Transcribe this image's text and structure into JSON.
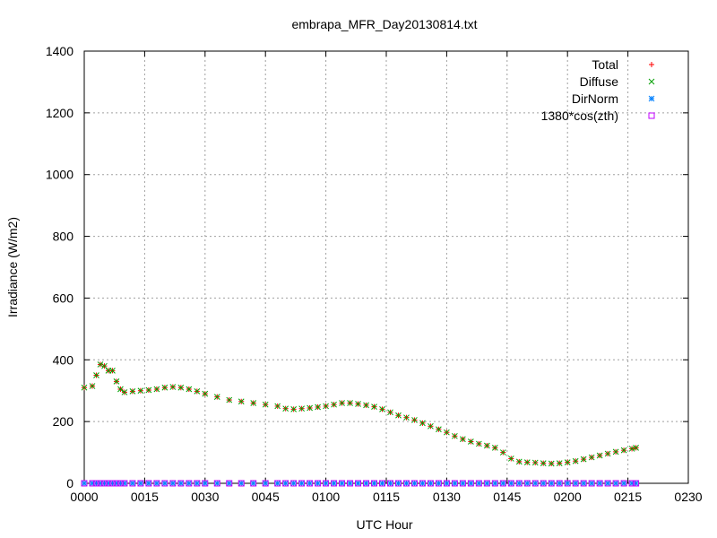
{
  "chart_data": {
    "type": "scatter",
    "title": "embrapa_MFR_Day20130814.txt",
    "xlabel": "UTC Hour",
    "ylabel": "Irradiance (W/m2)",
    "x_unit": "minutes after 0000 UTC",
    "xlim": [
      0,
      150
    ],
    "ylim": [
      0,
      1400
    ],
    "xticks": [
      {
        "value": 0,
        "label": "0000"
      },
      {
        "value": 15,
        "label": "0015"
      },
      {
        "value": 30,
        "label": "0030"
      },
      {
        "value": 45,
        "label": "0045"
      },
      {
        "value": 60,
        "label": "0100"
      },
      {
        "value": 75,
        "label": "0115"
      },
      {
        "value": 90,
        "label": "0130"
      },
      {
        "value": 105,
        "label": "0145"
      },
      {
        "value": 120,
        "label": "0200"
      },
      {
        "value": 135,
        "label": "0215"
      },
      {
        "value": 150,
        "label": "0230"
      }
    ],
    "yticks": [
      0,
      200,
      400,
      600,
      800,
      1000,
      1200,
      1400
    ],
    "grid": true,
    "legend_position": "top-right",
    "x": [
      0,
      2,
      3,
      4,
      5,
      6,
      7,
      8,
      9,
      10,
      12,
      14,
      16,
      18,
      20,
      22,
      24,
      26,
      28,
      30,
      33,
      36,
      39,
      42,
      45,
      48,
      50,
      52,
      54,
      56,
      58,
      60,
      62,
      64,
      66,
      68,
      70,
      72,
      74,
      76,
      78,
      80,
      82,
      84,
      86,
      88,
      90,
      92,
      94,
      96,
      98,
      100,
      102,
      104,
      106,
      108,
      110,
      112,
      114,
      116,
      118,
      120,
      122,
      124,
      126,
      128,
      130,
      132,
      134,
      136,
      137
    ],
    "series": [
      {
        "name": "Total",
        "color": "#ff0000",
        "marker": "plus",
        "values": [
          310,
          315,
          350,
          385,
          380,
          365,
          365,
          330,
          305,
          295,
          298,
          300,
          302,
          305,
          310,
          312,
          310,
          305,
          298,
          290,
          280,
          270,
          265,
          260,
          255,
          250,
          242,
          240,
          242,
          244,
          247,
          250,
          255,
          260,
          260,
          257,
          253,
          248,
          240,
          230,
          220,
          213,
          205,
          195,
          185,
          175,
          165,
          153,
          143,
          135,
          128,
          122,
          115,
          100,
          80,
          70,
          68,
          67,
          65,
          64,
          65,
          68,
          72,
          78,
          84,
          90,
          96,
          102,
          107,
          112,
          115
        ]
      },
      {
        "name": "Diffuse",
        "color": "#00a000",
        "marker": "cross",
        "values": [
          310,
          315,
          350,
          385,
          380,
          365,
          365,
          330,
          305,
          295,
          298,
          300,
          302,
          305,
          310,
          312,
          310,
          305,
          298,
          290,
          280,
          270,
          265,
          260,
          255,
          250,
          242,
          240,
          242,
          244,
          247,
          250,
          255,
          260,
          260,
          257,
          253,
          248,
          240,
          230,
          220,
          213,
          205,
          195,
          185,
          175,
          165,
          153,
          143,
          135,
          128,
          122,
          115,
          100,
          80,
          70,
          68,
          67,
          65,
          64,
          65,
          68,
          72,
          78,
          84,
          90,
          96,
          102,
          107,
          112,
          115
        ]
      },
      {
        "name": "DirNorm",
        "color": "#0080ff",
        "marker": "star",
        "values": [
          0,
          0,
          0,
          0,
          0,
          0,
          0,
          0,
          0,
          0,
          0,
          0,
          0,
          0,
          0,
          0,
          0,
          0,
          0,
          0,
          0,
          0,
          0,
          0,
          0,
          0,
          0,
          0,
          0,
          0,
          0,
          0,
          0,
          0,
          0,
          0,
          0,
          0,
          0,
          0,
          0,
          0,
          0,
          0,
          0,
          0,
          0,
          0,
          0,
          0,
          0,
          0,
          0,
          0,
          0,
          0,
          0,
          0,
          0,
          0,
          0,
          0,
          0,
          0,
          0,
          0,
          0,
          0,
          0,
          0,
          0
        ]
      },
      {
        "name": "1380*cos(zth)",
        "color": "#c000ff",
        "marker": "square",
        "values": [
          0,
          0,
          0,
          0,
          0,
          0,
          0,
          0,
          0,
          0,
          0,
          0,
          0,
          0,
          0,
          0,
          0,
          0,
          0,
          0,
          0,
          0,
          0,
          0,
          0,
          0,
          0,
          0,
          0,
          0,
          0,
          0,
          0,
          0,
          0,
          0,
          0,
          0,
          0,
          0,
          0,
          0,
          0,
          0,
          0,
          0,
          0,
          0,
          0,
          0,
          0,
          0,
          0,
          0,
          0,
          0,
          0,
          0,
          0,
          0,
          0,
          0,
          0,
          0,
          0,
          0,
          0,
          0,
          0,
          0,
          0
        ]
      }
    ]
  }
}
